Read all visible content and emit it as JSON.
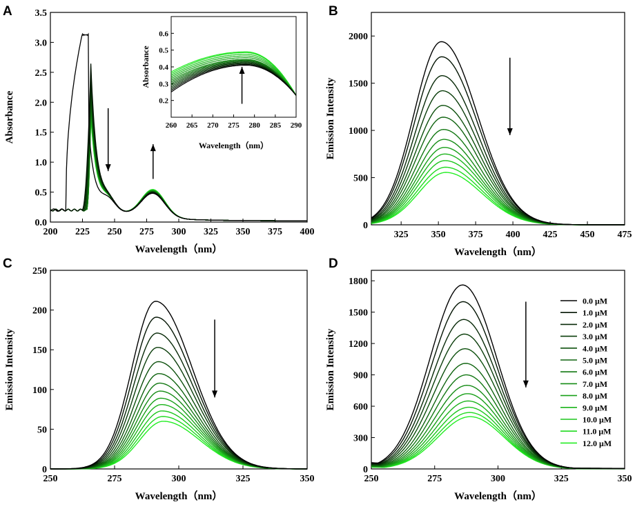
{
  "figure": {
    "legend_labels": [
      "0.0 μM",
      "1.0 μM",
      "2.0 μM",
      "3.0 μM",
      "4.0 μM",
      "5.0 μM",
      "6.0 μM",
      "7.0 μM",
      "8.0 μM",
      "9.0 μM",
      "10.0 μM",
      "11.0 μM",
      "12.0 μM"
    ],
    "colors": {
      "start": "#000000",
      "end": "#22ee22"
    }
  },
  "chart_data": [
    {
      "id": "A",
      "panel_label": "A",
      "type": "line",
      "xlabel": "Wavelength（nm）",
      "ylabel": "Absorbance",
      "xlim": [
        200,
        400
      ],
      "ylim": [
        0,
        3.5
      ],
      "xticks": [
        200,
        225,
        250,
        275,
        300,
        325,
        350,
        375,
        400
      ],
      "yticks": [
        0.0,
        0.5,
        1.0,
        1.5,
        2.0,
        2.5,
        3.0,
        3.5
      ],
      "xtick_labels": [
        "200",
        "225",
        "250",
        "275",
        "300",
        "325",
        "350",
        "375",
        "400"
      ],
      "ytick_labels": [
        "0.0",
        "0.5",
        "1.0",
        "1.5",
        "2.0",
        "2.5",
        "3.0",
        "3.5"
      ],
      "series_count": 13,
      "trend": "absorbance decreases near 230 nm and increases near 280 nm with increasing concentration",
      "peak_values": [
        3.16,
        2.62,
        2.45,
        2.3,
        2.2,
        2.1,
        2.03,
        1.97,
        1.91,
        1.86,
        1.82,
        1.78,
        1.75
      ],
      "band280_values": [
        0.4,
        0.41,
        0.415,
        0.42,
        0.425,
        0.43,
        0.435,
        0.44,
        0.445,
        0.45,
        0.455,
        0.46,
        0.465
      ],
      "arrows": [
        "down at 245 nm",
        "up at 280 nm"
      ],
      "inset": {
        "xlabel": "Wavelength（nm）",
        "ylabel": "Absorbance",
        "xlim": [
          260,
          290
        ],
        "ylim": [
          0.1,
          0.7
        ],
        "xticks": [
          260,
          265,
          270,
          275,
          280,
          285,
          290
        ],
        "yticks": [
          0.2,
          0.3,
          0.4,
          0.5,
          0.6
        ],
        "xtick_labels": [
          "260",
          "265",
          "270",
          "275",
          "280",
          "285",
          "290"
        ],
        "ytick_labels": [
          "0.2",
          "0.3",
          "0.4",
          "0.5",
          "0.6"
        ],
        "peak_values": [
          0.41,
          0.415,
          0.42,
          0.425,
          0.43,
          0.435,
          0.44,
          0.445,
          0.455,
          0.465,
          0.475,
          0.485,
          0.49
        ],
        "arrow": "up at 277 nm"
      }
    },
    {
      "id": "B",
      "panel_label": "B",
      "type": "line",
      "xlabel": "Wavelength（nm）",
      "ylabel": "Emission Intensity",
      "xlim": [
        305,
        475
      ],
      "ylim": [
        0,
        2250
      ],
      "xticks": [
        325,
        350,
        375,
        400,
        425,
        450,
        475
      ],
      "yticks": [
        0,
        500,
        1000,
        1500,
        2000
      ],
      "xtick_labels": [
        "325",
        "350",
        "375",
        "400",
        "425",
        "450",
        "475"
      ],
      "ytick_labels": [
        "0",
        "500",
        "1000",
        "1500",
        "2000"
      ],
      "peak_x": 352,
      "peak_values": [
        1940,
        1780,
        1580,
        1420,
        1265,
        1140,
        1010,
        905,
        820,
        750,
        680,
        610,
        555
      ],
      "arrow": "down at 398 nm"
    },
    {
      "id": "C",
      "panel_label": "C",
      "type": "line",
      "xlabel": "Wavelength（nm）",
      "ylabel": "Emission Intensity",
      "xlim": [
        250,
        350
      ],
      "ylim": [
        0,
        250
      ],
      "xticks": [
        250,
        275,
        300,
        325,
        350
      ],
      "yticks": [
        0,
        50,
        100,
        150,
        200,
        250
      ],
      "xtick_labels": [
        "250",
        "275",
        "300",
        "325",
        "350"
      ],
      "ytick_labels": [
        "0",
        "50",
        "100",
        "150",
        "200",
        "250"
      ],
      "peak_x": 291,
      "peak_values": [
        211,
        191,
        171,
        153,
        135,
        120,
        108,
        98,
        89,
        81,
        73,
        66,
        60
      ],
      "arrow": "down at 314 nm"
    },
    {
      "id": "D",
      "panel_label": "D",
      "type": "line",
      "xlabel": "Wavelength（nm）",
      "ylabel": "Emission Intensity",
      "xlim": [
        250,
        350
      ],
      "ylim": [
        0,
        1900
      ],
      "xticks": [
        250,
        275,
        300,
        325,
        350
      ],
      "yticks": [
        0,
        300,
        600,
        900,
        1200,
        1500,
        1800
      ],
      "xtick_labels": [
        "250",
        "275",
        "300",
        "325",
        "350"
      ],
      "ytick_labels": [
        "0",
        "300",
        "600",
        "900",
        "1200",
        "1500",
        "1800"
      ],
      "peak_x": 286,
      "peak_values": [
        1760,
        1600,
        1430,
        1290,
        1150,
        1010,
        900,
        800,
        720,
        650,
        590,
        540,
        500
      ],
      "arrow": "down at 311 nm",
      "legend_position": "top-right"
    }
  ]
}
